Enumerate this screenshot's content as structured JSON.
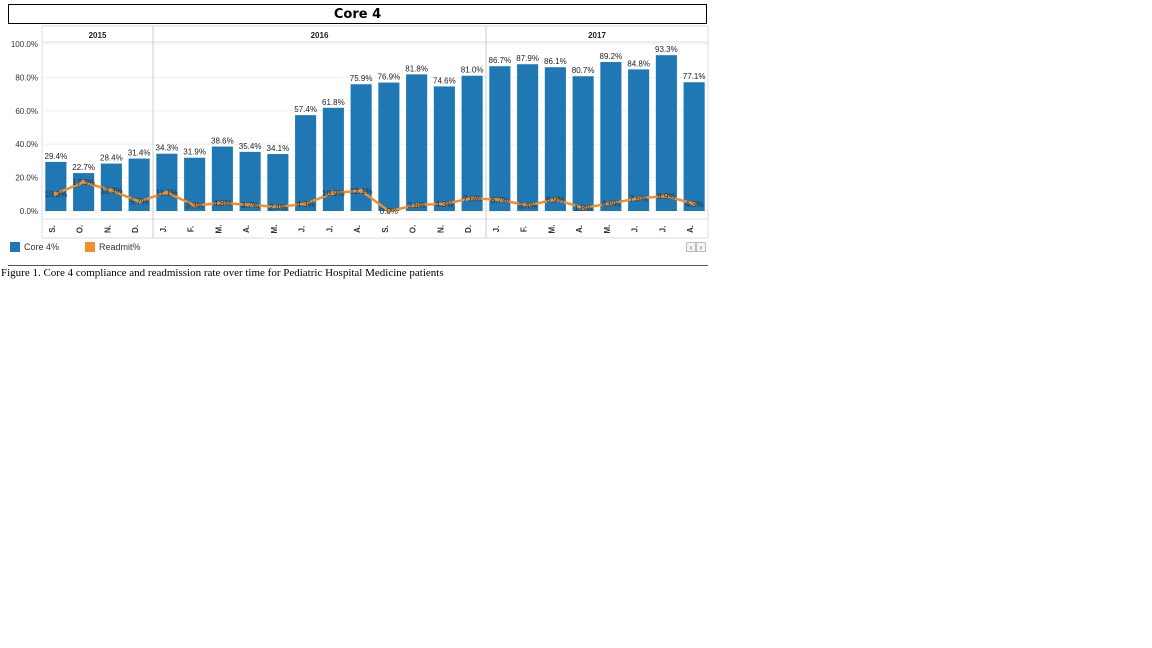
{
  "chart_data": {
    "type": "bar",
    "title": "Core 4",
    "years": [
      {
        "label": "2015",
        "start": 0,
        "count": 4
      },
      {
        "label": "2016",
        "start": 4,
        "count": 12
      },
      {
        "label": "2017",
        "start": 16,
        "count": 8
      }
    ],
    "categories": [
      "S.",
      "O.",
      "N.",
      "D.",
      "J.",
      "F.",
      "M.",
      "A.",
      "M.",
      "J.",
      "J.",
      "A.",
      "S.",
      "O.",
      "N.",
      "D.",
      "J.",
      "F.",
      "M.",
      "A.",
      "M.",
      "J.",
      "J.",
      "A."
    ],
    "y_ticks": [
      "100.0%",
      "80.0%",
      "60.0%",
      "40.0%",
      "20.0%",
      "0.0%"
    ],
    "ylim": [
      0,
      100
    ],
    "series": [
      {
        "name": "Core 4%",
        "type": "bar",
        "color": "#1f77b4",
        "values": [
          29.4,
          22.7,
          28.4,
          31.4,
          34.3,
          31.9,
          38.6,
          35.4,
          34.1,
          57.4,
          61.8,
          75.9,
          76.9,
          81.8,
          74.6,
          81.0,
          86.7,
          87.9,
          86.1,
          80.7,
          89.2,
          84.8,
          93.3,
          77.1
        ],
        "labels": [
          "29.4%",
          "22.7%",
          "28.4%",
          "31.4%",
          "34.3%",
          "31.9%",
          "38.6%",
          "35.4%",
          "34.1%",
          "57.4%",
          "61.8%",
          "75.9%",
          "76.9%",
          "81.8%",
          "74.6%",
          "81.0%",
          "86.7%",
          "87.9%",
          "86.1%",
          "80.7%",
          "89.2%",
          "84.8%",
          "93.3%",
          "77.1%"
        ]
      },
      {
        "name": "Readmit%",
        "type": "line",
        "color": "#f28e2b",
        "values": [
          10.3,
          17.3,
          12.3,
          5.7,
          11.1,
          3.3,
          4.8,
          3.7,
          2.4,
          4.3,
          10.9,
          12.1,
          0.0,
          3.6,
          4.3,
          7.6,
          6.7,
          3.4,
          6.9,
          1.8,
          4.6,
          7.6,
          8.9,
          4.3
        ],
        "labels": [
          "10.3%",
          "17.3%",
          "12.3%",
          "5.7%",
          "11.1%",
          "3.3%",
          "4.8%",
          "3.7%",
          "2.4%",
          "4.3%",
          "10.9%",
          "12.1%",
          "0.0%",
          "3.6%",
          "4.3%",
          "7.6%",
          "6.7%",
          "3.4%",
          "6.9%",
          "1.8%",
          "4.6%",
          "7.6%",
          "8.9%",
          "4.3%"
        ]
      }
    ],
    "legend": [
      "Core 4%",
      "Readmit%"
    ],
    "legend_position": "bottom-left",
    "grid": true
  },
  "caption": "Figure 1.  Core 4 compliance and readmission rate over time for Pediatric Hospital Medicine patients"
}
